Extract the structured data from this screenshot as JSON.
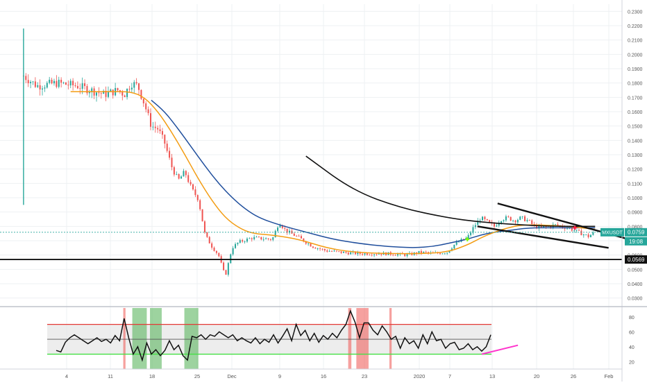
{
  "symbol": "MXUSDT",
  "price_label": "0.0759",
  "countdown": "19:08",
  "support_label": "0.0569",
  "colors": {
    "up": "#26a69a",
    "down": "#ef5350",
    "ma_fast": "#f39c12",
    "ma_slow": "#1f4e9c",
    "rsi_line": "#111111",
    "rsi_upper": "#e53935",
    "rsi_lower": "#43e043",
    "rsi_ext": "#ff33cc",
    "overbought_zone": "#ef5350",
    "oversold_zone": "#4caf50",
    "price_tag": "#26a69a"
  },
  "chart_data": [
    {
      "type": "candlestick",
      "title": "",
      "x_tick_labels": [
        "4",
        "11",
        "18",
        "25",
        "Dec",
        "9",
        "16",
        "23",
        "2020",
        "7",
        "13",
        "20",
        "26",
        "Feb"
      ],
      "y_tick_labels": [
        "0.0300",
        "0.0400",
        "0.0500",
        "0.0600",
        "0.0700",
        "0.0800",
        "0.0900",
        "0.1000",
        "0.1100",
        "0.1200",
        "0.1300",
        "0.1400",
        "0.1500",
        "0.1600",
        "0.1700",
        "0.1800",
        "0.1900",
        "0.2000",
        "0.2100",
        "0.2200",
        "0.2300"
      ],
      "ylim": [
        0.025,
        0.235
      ],
      "xlim": [
        -2.5,
        90
      ],
      "grid": true,
      "series": [
        {
          "kind": "price",
          "points": [
            [
              1,
              0.185
            ],
            [
              3,
              0.178
            ],
            [
              6,
              0.18
            ],
            [
              9,
              0.178
            ],
            [
              13,
              0.172
            ],
            [
              15,
              0.175
            ],
            [
              16,
              0.172
            ],
            [
              17,
              0.18
            ],
            [
              18,
              0.178
            ],
            [
              19,
              0.165
            ],
            [
              20,
              0.15
            ],
            [
              21,
              0.148
            ],
            [
              22,
              0.138
            ],
            [
              23,
              0.122
            ],
            [
              24,
              0.112
            ],
            [
              25,
              0.118
            ],
            [
              26,
              0.106
            ],
            [
              27,
              0.099
            ],
            [
              28,
              0.074
            ],
            [
              29,
              0.066
            ],
            [
              30,
              0.06
            ],
            [
              31,
              0.045
            ],
            [
              32,
              0.065
            ],
            [
              33,
              0.069
            ],
            [
              35,
              0.072
            ],
            [
              38,
              0.071
            ],
            [
              39,
              0.083
            ],
            [
              40,
              0.077
            ],
            [
              42,
              0.072
            ],
            [
              44,
              0.066
            ],
            [
              46,
              0.063
            ],
            [
              48,
              0.062
            ],
            [
              51,
              0.061
            ],
            [
              55,
              0.061
            ],
            [
              58,
              0.06
            ],
            [
              60,
              0.062
            ],
            [
              62,
              0.061
            ],
            [
              64,
              0.062
            ],
            [
              65,
              0.067
            ],
            [
              66,
              0.07
            ],
            [
              67,
              0.072
            ],
            [
              68,
              0.08
            ],
            [
              69,
              0.086
            ],
            [
              70,
              0.083
            ],
            [
              71,
              0.08
            ],
            [
              72,
              0.085
            ],
            [
              73,
              0.086
            ],
            [
              74,
              0.084
            ],
            [
              75,
              0.086
            ],
            [
              76,
              0.084
            ],
            [
              77,
              0.08
            ],
            [
              78,
              0.079
            ],
            [
              79,
              0.08
            ],
            [
              80,
              0.081
            ],
            [
              81,
              0.08
            ],
            [
              82,
              0.079
            ],
            [
              83,
              0.077
            ],
            [
              84,
              0.075
            ],
            [
              85,
              0.073
            ],
            [
              86,
              0.076
            ]
          ]
        },
        {
          "kind": "moving_average_fast",
          "points": [
            [
              8,
              0.174
            ],
            [
              14,
              0.174
            ],
            [
              17,
              0.174
            ],
            [
              19,
              0.17
            ],
            [
              21,
              0.16
            ],
            [
              23,
              0.146
            ],
            [
              25,
              0.13
            ],
            [
              27,
              0.113
            ],
            [
              29,
              0.098
            ],
            [
              31,
              0.086
            ],
            [
              33,
              0.079
            ],
            [
              35,
              0.075
            ],
            [
              38,
              0.074
            ],
            [
              42,
              0.071
            ],
            [
              46,
              0.065
            ],
            [
              50,
              0.062
            ],
            [
              55,
              0.061
            ],
            [
              60,
              0.061
            ],
            [
              64,
              0.062
            ],
            [
              67,
              0.067
            ],
            [
              69,
              0.072
            ],
            [
              71,
              0.076
            ],
            [
              73,
              0.079
            ],
            [
              75,
              0.081
            ],
            [
              78,
              0.081
            ],
            [
              82,
              0.08
            ],
            [
              86,
              0.078
            ]
          ]
        },
        {
          "kind": "moving_average_slow",
          "points": [
            [
              20,
              0.168
            ],
            [
              22,
              0.16
            ],
            [
              24,
              0.148
            ],
            [
              26,
              0.135
            ],
            [
              28,
              0.122
            ],
            [
              30,
              0.11
            ],
            [
              32,
              0.1
            ],
            [
              34,
              0.092
            ],
            [
              36,
              0.086
            ],
            [
              39,
              0.081
            ],
            [
              43,
              0.076
            ],
            [
              47,
              0.071
            ],
            [
              51,
              0.068
            ],
            [
              55,
              0.066
            ],
            [
              59,
              0.065
            ],
            [
              62,
              0.066
            ],
            [
              65,
              0.069
            ],
            [
              67,
              0.071
            ],
            [
              69,
              0.074
            ],
            [
              71,
              0.076
            ],
            [
              73,
              0.077
            ],
            [
              76,
              0.079
            ],
            [
              80,
              0.079
            ],
            [
              86,
              0.079
            ]
          ]
        }
      ],
      "drawings": {
        "curve": [
          [
            43,
            0.129
          ],
          [
            50,
            0.105
          ],
          [
            57,
            0.093
          ],
          [
            64,
            0.086
          ],
          [
            69,
            0.083
          ],
          [
            75,
            0.081
          ],
          [
            80,
            0.08
          ],
          [
            86,
            0.08
          ]
        ],
        "wedge_upper": [
          [
            71.5,
            0.096
          ],
          [
            91,
            0.071
          ]
        ],
        "wedge_lower": [
          [
            68.5,
            0.08
          ],
          [
            88,
            0.065
          ]
        ],
        "support_level": 0.0569,
        "current_price": 0.0759,
        "markers": [
          {
            "x": 67,
            "y": 0.071,
            "type": "cross",
            "color": "#7fff00"
          },
          {
            "x": 83,
            "y": 0.079,
            "type": "cross",
            "color": "#ff1744"
          }
        ]
      }
    },
    {
      "type": "line",
      "title": "",
      "y_tick_labels": [
        "20",
        "40",
        "60",
        "80"
      ],
      "ylim": [
        10,
        92
      ],
      "upper_level": 70,
      "middle_level": 50,
      "lower_level": 30,
      "series": [
        {
          "kind": "rsi",
          "points": [
            [
              2,
              35
            ],
            [
              3,
              33
            ],
            [
              4,
              46
            ],
            [
              5,
              52
            ],
            [
              6,
              56
            ],
            [
              7,
              52
            ],
            [
              8,
              48
            ],
            [
              9,
              44
            ],
            [
              10,
              48
            ],
            [
              11,
              52
            ],
            [
              12,
              47
            ],
            [
              13,
              50
            ],
            [
              14,
              45
            ],
            [
              15,
              55
            ],
            [
              16,
              48
            ],
            [
              17,
              78
            ],
            [
              18,
              52
            ],
            [
              19,
              30
            ],
            [
              20,
              40
            ],
            [
              21,
              22
            ],
            [
              22,
              45
            ],
            [
              23,
              30
            ],
            [
              24,
              36
            ],
            [
              25,
              28
            ],
            [
              26,
              35
            ],
            [
              27,
              48
            ],
            [
              28,
              36
            ],
            [
              29,
              42
            ],
            [
              30,
              28
            ],
            [
              31,
              22
            ],
            [
              32,
              54
            ],
            [
              33,
              52
            ],
            [
              34,
              56
            ],
            [
              35,
              50
            ],
            [
              36,
              56
            ],
            [
              37,
              54
            ],
            [
              38,
              60
            ],
            [
              39,
              56
            ],
            [
              40,
              52
            ],
            [
              41,
              56
            ],
            [
              42,
              48
            ],
            [
              43,
              52
            ],
            [
              44,
              48
            ],
            [
              45,
              45
            ],
            [
              46,
              52
            ],
            [
              47,
              44
            ],
            [
              48,
              50
            ],
            [
              49,
              46
            ],
            [
              50,
              56
            ],
            [
              51,
              45
            ],
            [
              52,
              54
            ],
            [
              53,
              64
            ],
            [
              54,
              48
            ],
            [
              55,
              70
            ],
            [
              56,
              55
            ],
            [
              57,
              62
            ],
            [
              58,
              48
            ],
            [
              59,
              58
            ],
            [
              60,
              46
            ],
            [
              61,
              55
            ],
            [
              62,
              50
            ],
            [
              63,
              58
            ],
            [
              64,
              52
            ],
            [
              65,
              62
            ],
            [
              66,
              70
            ],
            [
              67,
              88
            ],
            [
              68,
              73
            ],
            [
              69,
              52
            ],
            [
              70,
              72
            ],
            [
              71,
              72
            ],
            [
              72,
              62
            ],
            [
              73,
              56
            ],
            [
              74,
              68
            ],
            [
              75,
              60
            ],
            [
              76,
              50
            ],
            [
              77,
              54
            ],
            [
              78,
              38
            ],
            [
              79,
              52
            ],
            [
              80,
              44
            ],
            [
              81,
              48
            ],
            [
              82,
              38
            ],
            [
              83,
              56
            ],
            [
              84,
              44
            ],
            [
              85,
              60
            ],
            [
              86,
              48
            ],
            [
              87,
              50
            ],
            [
              88,
              38
            ],
            [
              89,
              44
            ],
            [
              90,
              46
            ],
            [
              91,
              36
            ],
            [
              92,
              38
            ],
            [
              93,
              44
            ],
            [
              94,
              36
            ],
            [
              95,
              40
            ],
            [
              96,
              34
            ],
            [
              97,
              40
            ],
            [
              98,
              56
            ]
          ]
        }
      ],
      "rsi_x_domain": [
        0,
        100
      ],
      "rsi_extension": [
        [
          96,
          30
        ],
        [
          104,
          42
        ]
      ],
      "overbought_zones": [
        [
          16.8,
          17.3
        ],
        [
          66.5,
          67.2
        ],
        [
          68.3,
          71.0
        ],
        [
          75.6,
          76.1
        ]
      ],
      "oversold_zones": [
        [
          18.8,
          22.0
        ],
        [
          22.7,
          25.3
        ],
        [
          30.3,
          33.4
        ]
      ]
    }
  ]
}
